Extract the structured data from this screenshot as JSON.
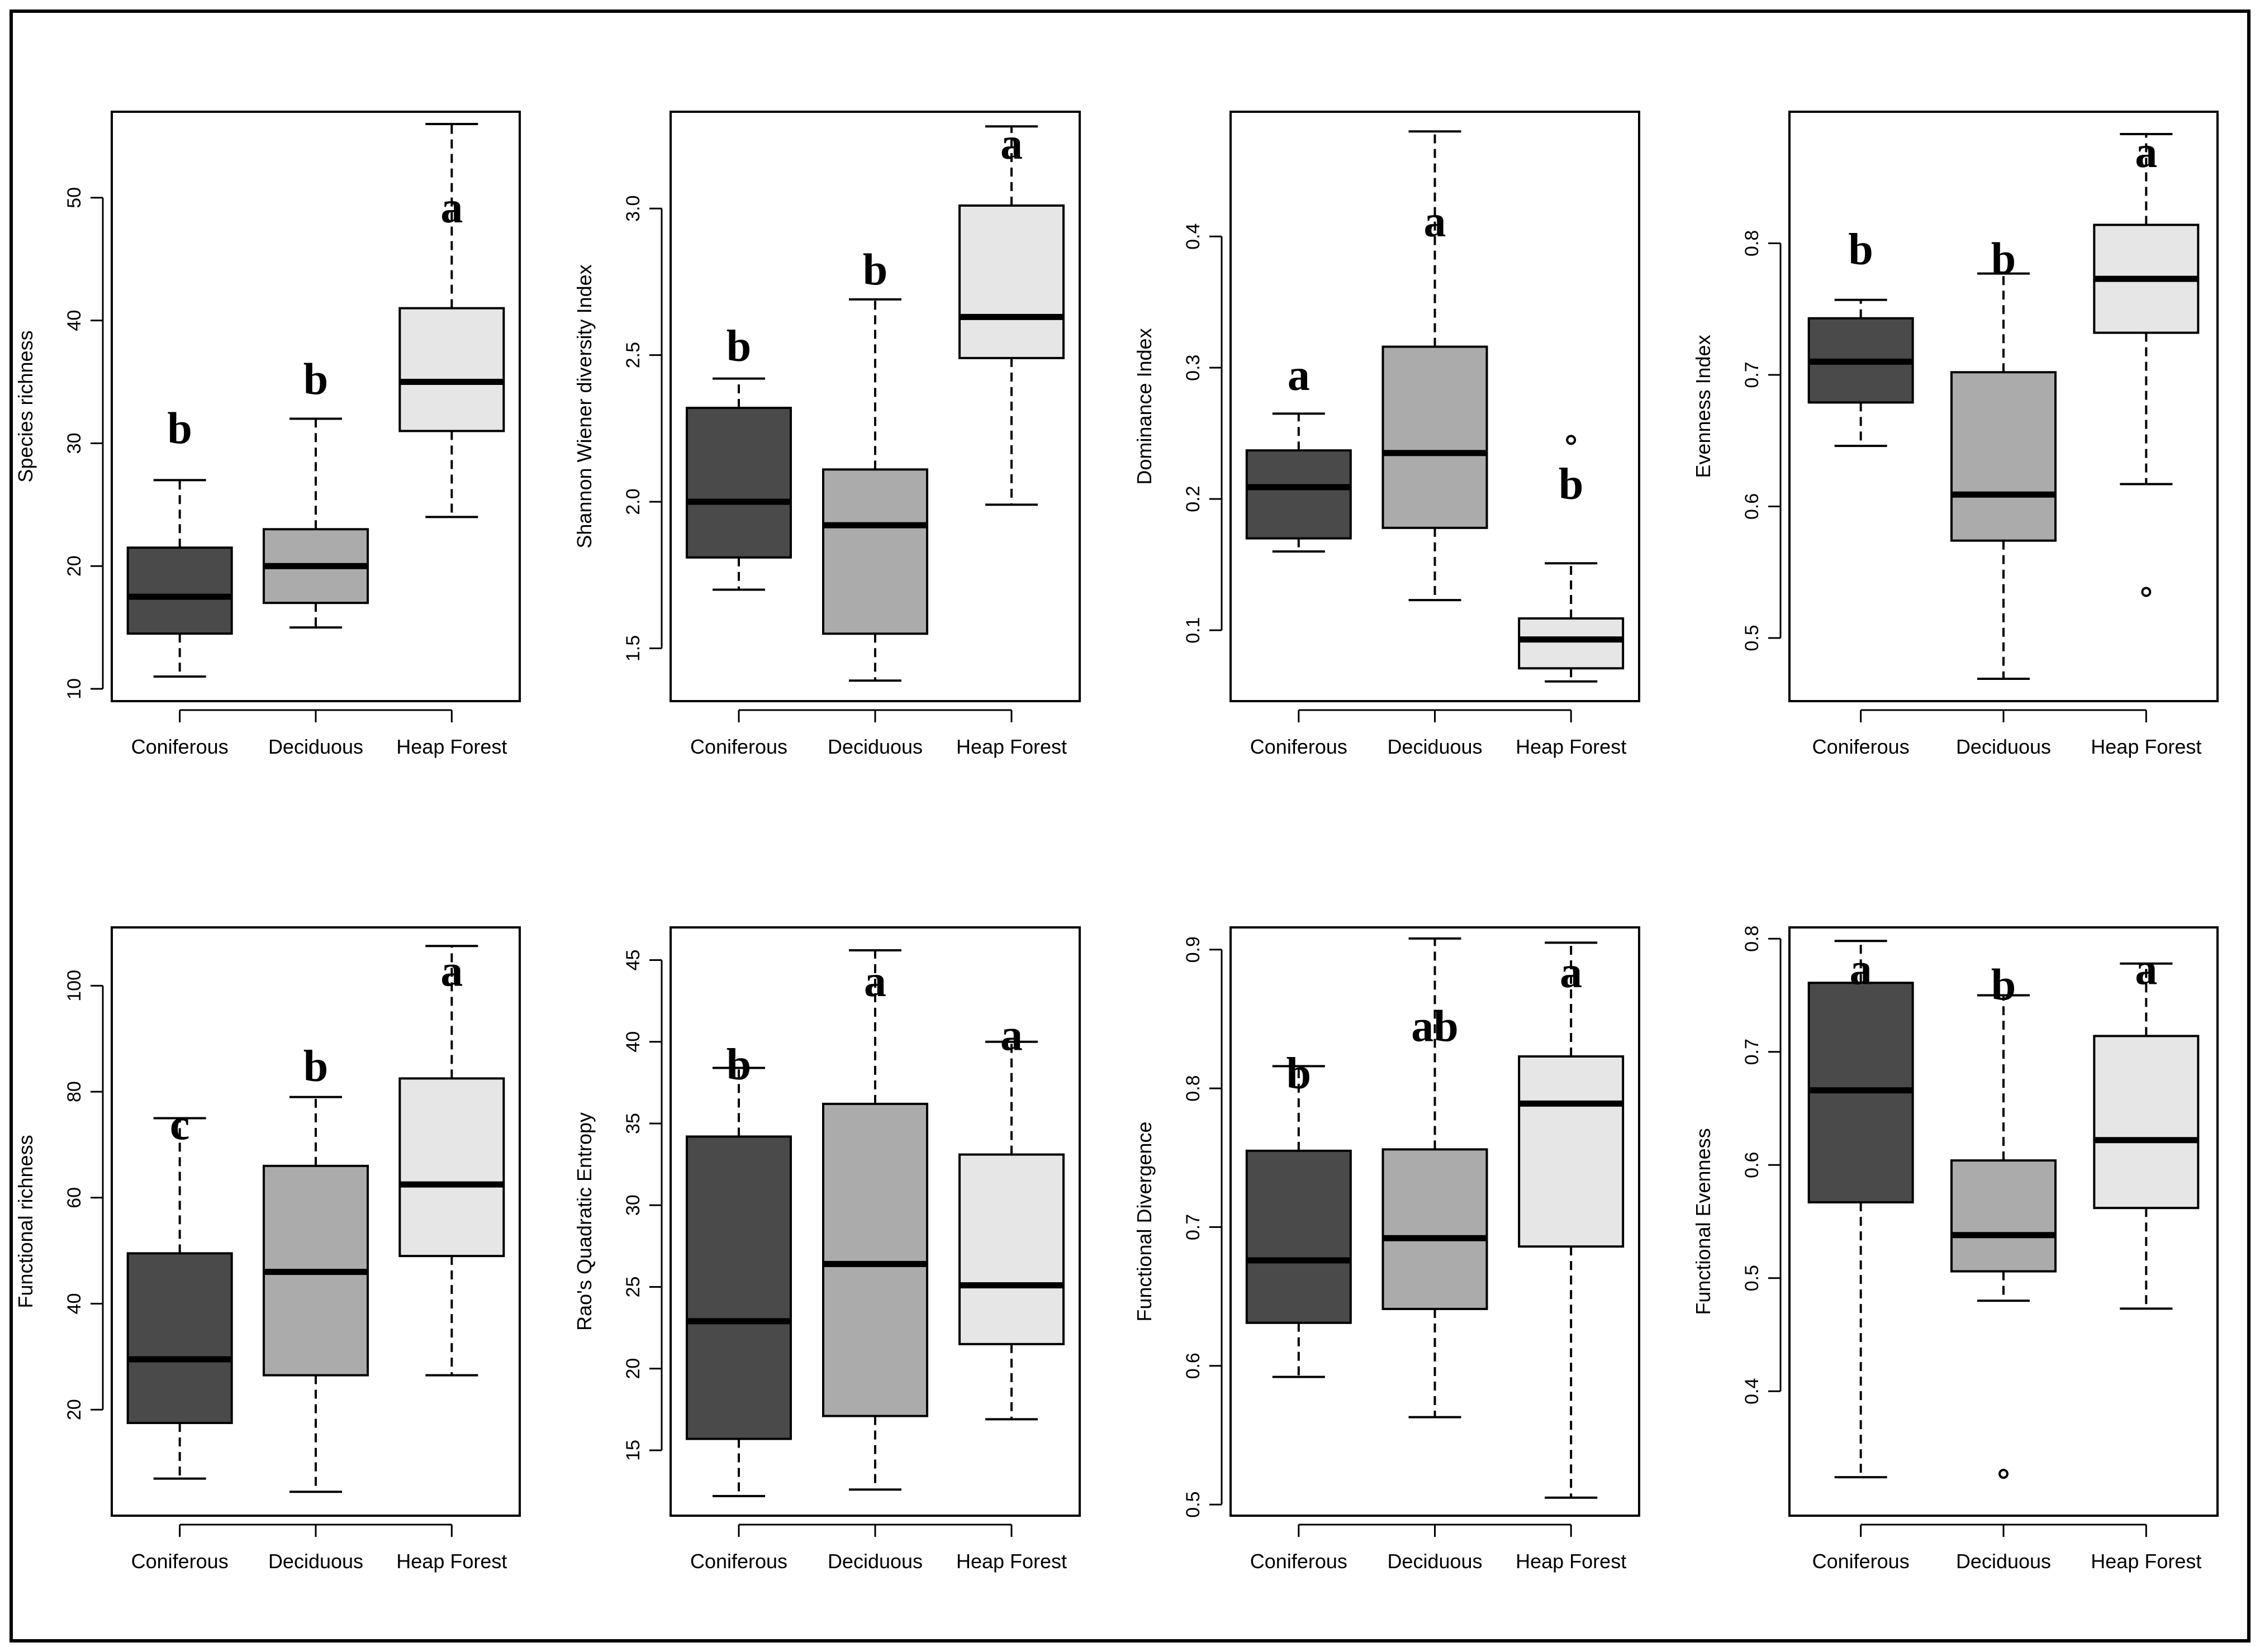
{
  "colors": {
    "Coniferous": "#4a4a4a",
    "Deciduous": "#ababab",
    "Heap Forest": "#e6e6e6",
    "frame": "#000000",
    "median": "#000000"
  },
  "chart_data": [
    {
      "type": "box",
      "ylabel": "Species richness",
      "categories": [
        "Coniferous",
        "Deciduous",
        "Heap Forest"
      ],
      "ylim": [
        9,
        57
      ],
      "yticks": [
        10,
        20,
        30,
        40,
        50
      ],
      "ytick_labels": [
        "10",
        "20",
        "30",
        "40",
        "50"
      ],
      "boxes": [
        {
          "group": "Coniferous",
          "min": 11,
          "q1": 14.5,
          "median": 17.5,
          "q3": 21.5,
          "max": 27,
          "outliers": []
        },
        {
          "group": "Deciduous",
          "min": 15,
          "q1": 17,
          "median": 20,
          "q3": 23,
          "max": 32,
          "outliers": []
        },
        {
          "group": "Heap Forest",
          "min": 24,
          "q1": 31,
          "median": 35,
          "q3": 41,
          "max": 56,
          "outliers": []
        }
      ],
      "letters": [
        "b",
        "b",
        "a"
      ],
      "letter_y": [
        30,
        34,
        48
      ]
    },
    {
      "type": "box",
      "ylabel": "Shannon Wiener diversity Index",
      "categories": [
        "Coniferous",
        "Deciduous",
        "Heap Forest"
      ],
      "ylim": [
        1.32,
        3.33
      ],
      "yticks": [
        1.5,
        2.0,
        2.5,
        3.0
      ],
      "ytick_labels": [
        "1.5",
        "2.0",
        "2.5",
        "3.0"
      ],
      "boxes": [
        {
          "group": "Coniferous",
          "min": 1.7,
          "q1": 1.81,
          "median": 2.0,
          "q3": 2.32,
          "max": 2.42,
          "outliers": []
        },
        {
          "group": "Deciduous",
          "min": 1.39,
          "q1": 1.55,
          "median": 1.92,
          "q3": 2.11,
          "max": 2.69,
          "outliers": []
        },
        {
          "group": "Heap Forest",
          "min": 1.99,
          "q1": 2.49,
          "median": 2.63,
          "q3": 3.01,
          "max": 3.28,
          "outliers": []
        }
      ],
      "letters": [
        "b",
        "b",
        "a"
      ],
      "letter_y": [
        2.48,
        2.74,
        3.17
      ]
    },
    {
      "type": "box",
      "ylabel": "Dominance Index",
      "categories": [
        "Coniferous",
        "Deciduous",
        "Heap Forest"
      ],
      "ylim": [
        0.046,
        0.495
      ],
      "yticks": [
        0.1,
        0.2,
        0.3,
        0.4
      ],
      "ytick_labels": [
        "0.1",
        "0.2",
        "0.3",
        "0.4"
      ],
      "boxes": [
        {
          "group": "Coniferous",
          "min": 0.16,
          "q1": 0.17,
          "median": 0.209,
          "q3": 0.237,
          "max": 0.265,
          "outliers": []
        },
        {
          "group": "Deciduous",
          "min": 0.123,
          "q1": 0.178,
          "median": 0.235,
          "q3": 0.316,
          "max": 0.48,
          "outliers": []
        },
        {
          "group": "Heap Forest",
          "min": 0.061,
          "q1": 0.071,
          "median": 0.093,
          "q3": 0.109,
          "max": 0.151,
          "outliers": [
            0.245
          ]
        }
      ],
      "letters": [
        "a",
        "a",
        "b"
      ],
      "letter_y": [
        0.283,
        0.4,
        0.2
      ]
    },
    {
      "type": "box",
      "ylabel": "Evenness Index",
      "categories": [
        "Coniferous",
        "Deciduous",
        "Heap Forest"
      ],
      "ylim": [
        0.452,
        0.9
      ],
      "yticks": [
        0.5,
        0.6,
        0.7,
        0.8
      ],
      "ytick_labels": [
        "0.5",
        "0.6",
        "0.7",
        "0.8"
      ],
      "boxes": [
        {
          "group": "Coniferous",
          "min": 0.646,
          "q1": 0.679,
          "median": 0.71,
          "q3": 0.743,
          "max": 0.757,
          "outliers": []
        },
        {
          "group": "Deciduous",
          "min": 0.469,
          "q1": 0.574,
          "median": 0.609,
          "q3": 0.702,
          "max": 0.777,
          "outliers": []
        },
        {
          "group": "Heap Forest",
          "min": 0.617,
          "q1": 0.732,
          "median": 0.773,
          "q3": 0.814,
          "max": 0.883,
          "outliers": [
            0.535
          ]
        }
      ],
      "letters": [
        "b",
        "b",
        "a"
      ],
      "letter_y": [
        0.784,
        0.777,
        0.858
      ]
    },
    {
      "type": "box",
      "ylabel": "Functional richness",
      "categories": [
        "Coniferous",
        "Deciduous",
        "Heap Forest"
      ],
      "ylim": [
        0,
        111
      ],
      "yticks": [
        20,
        40,
        60,
        80,
        100
      ],
      "ytick_labels": [
        "20",
        "40",
        "60",
        "80",
        "100"
      ],
      "boxes": [
        {
          "group": "Coniferous",
          "min": 7,
          "q1": 17.5,
          "median": 29.5,
          "q3": 49.5,
          "max": 75,
          "outliers": []
        },
        {
          "group": "Deciduous",
          "min": 4.5,
          "q1": 26.5,
          "median": 46,
          "q3": 66,
          "max": 79,
          "outliers": []
        },
        {
          "group": "Heap Forest",
          "min": 26.5,
          "q1": 49,
          "median": 62.5,
          "q3": 82.5,
          "max": 107.5,
          "outliers": []
        }
      ],
      "letters": [
        "c",
        "b",
        "a"
      ],
      "letter_y": [
        71,
        82,
        100
      ]
    },
    {
      "type": "box",
      "ylabel": "Rao's Quadratic Entropy",
      "categories": [
        "Coniferous",
        "Deciduous",
        "Heap Forest"
      ],
      "ylim": [
        11,
        47
      ],
      "yticks": [
        15,
        20,
        25,
        30,
        35,
        40,
        45
      ],
      "ytick_labels": [
        "15",
        "20",
        "25",
        "30",
        "35",
        "40",
        "45"
      ],
      "boxes": [
        {
          "group": "Coniferous",
          "min": 12.2,
          "q1": 15.7,
          "median": 22.9,
          "q3": 34.2,
          "max": 38.4,
          "outliers": []
        },
        {
          "group": "Deciduous",
          "min": 12.6,
          "q1": 17.1,
          "median": 26.4,
          "q3": 36.2,
          "max": 45.6,
          "outliers": []
        },
        {
          "group": "Heap Forest",
          "min": 16.9,
          "q1": 21.5,
          "median": 25.1,
          "q3": 33.1,
          "max": 40,
          "outliers": []
        }
      ],
      "letters": [
        "b",
        "a",
        "a"
      ],
      "letter_y": [
        37.7,
        42.8,
        39.5
      ]
    },
    {
      "type": "box",
      "ylabel": "Functional Divergence",
      "categories": [
        "Coniferous",
        "Deciduous",
        "Heap Forest"
      ],
      "ylim": [
        0.492,
        0.916
      ],
      "yticks": [
        0.5,
        0.6,
        0.7,
        0.8,
        0.9
      ],
      "ytick_labels": [
        "0.5",
        "0.6",
        "0.7",
        "0.8",
        "0.9"
      ],
      "boxes": [
        {
          "group": "Coniferous",
          "min": 0.592,
          "q1": 0.631,
          "median": 0.676,
          "q3": 0.755,
          "max": 0.816,
          "outliers": []
        },
        {
          "group": "Deciduous",
          "min": 0.563,
          "q1": 0.641,
          "median": 0.692,
          "q3": 0.756,
          "max": 0.908,
          "outliers": []
        },
        {
          "group": "Heap Forest",
          "min": 0.505,
          "q1": 0.686,
          "median": 0.789,
          "q3": 0.823,
          "max": 0.905,
          "outliers": []
        }
      ],
      "letters": [
        "b",
        "ab",
        "a"
      ],
      "letter_y": [
        0.8,
        0.834,
        0.873
      ]
    },
    {
      "type": "box",
      "ylabel": "Functional Evenness",
      "categories": [
        "Coniferous",
        "Deciduous",
        "Heap Forest"
      ],
      "ylim": [
        0.29,
        0.81
      ],
      "yticks": [
        0.4,
        0.5,
        0.6,
        0.7,
        0.8
      ],
      "ytick_labels": [
        "0.4",
        "0.5",
        "0.6",
        "0.7",
        "0.8"
      ],
      "boxes": [
        {
          "group": "Coniferous",
          "min": 0.324,
          "q1": 0.567,
          "median": 0.666,
          "q3": 0.761,
          "max": 0.798,
          "outliers": []
        },
        {
          "group": "Deciduous",
          "min": 0.48,
          "q1": 0.506,
          "median": 0.538,
          "q3": 0.604,
          "max": 0.75,
          "outliers": [
            0.327
          ]
        },
        {
          "group": "Heap Forest",
          "min": 0.473,
          "q1": 0.562,
          "median": 0.622,
          "q3": 0.714,
          "max": 0.778,
          "outliers": []
        }
      ],
      "letters": [
        "a",
        "b",
        "a"
      ],
      "letter_y": [
        0.76,
        0.746,
        0.76
      ]
    }
  ]
}
